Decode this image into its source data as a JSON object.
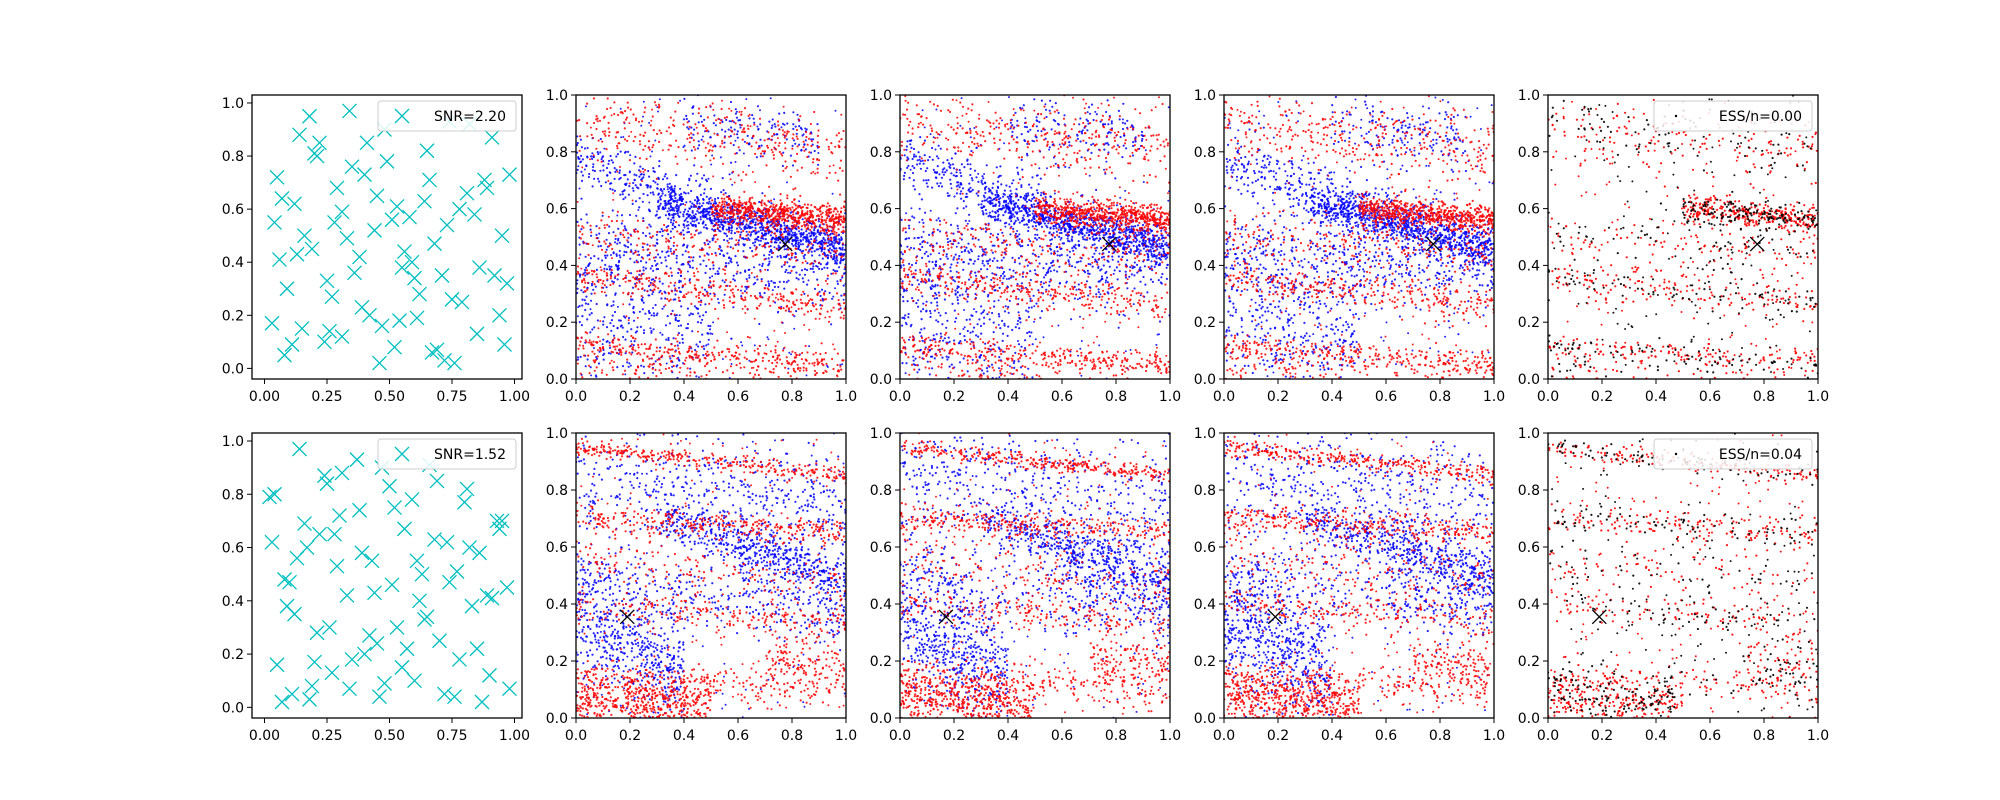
{
  "chart_data": [
    {
      "type": "scatter",
      "panel": "row1-col1",
      "legend": {
        "label": "SNR=2.20",
        "marker": "x",
        "color": "#00bfbf",
        "placement": "top-right"
      },
      "xlim": [
        -0.05,
        1.03
      ],
      "ylim": [
        -0.04,
        1.03
      ],
      "xticks": [
        "0.00",
        "0.25",
        "0.50",
        "0.75",
        "1.00"
      ],
      "yticks": [
        "0.0",
        "0.2",
        "0.4",
        "0.6",
        "0.8",
        "1.0"
      ],
      "points": {
        "x": [
          0.03,
          0.05,
          0.08,
          0.12,
          0.15,
          0.18,
          0.22,
          0.25,
          0.28,
          0.31,
          0.35,
          0.38,
          0.42,
          0.45,
          0.48,
          0.52,
          0.55,
          0.58,
          0.62,
          0.65,
          0.68,
          0.72,
          0.75,
          0.78,
          0.82,
          0.85,
          0.88,
          0.92,
          0.95,
          0.98,
          0.04,
          0.09,
          0.14,
          0.19,
          0.24,
          0.29,
          0.34,
          0.39,
          0.44,
          0.49,
          0.54,
          0.59,
          0.64,
          0.69,
          0.74,
          0.79,
          0.84,
          0.89,
          0.94,
          0.97,
          0.06,
          0.11,
          0.16,
          0.21,
          0.26,
          0.31,
          0.36,
          0.41,
          0.46,
          0.51,
          0.56,
          0.61,
          0.66,
          0.71,
          0.76,
          0.81,
          0.86,
          0.91,
          0.96,
          0.07,
          0.13,
          0.2,
          0.27,
          0.33,
          0.4,
          0.47,
          0.53,
          0.6,
          0.67,
          0.73
        ],
        "y": [
          0.17,
          0.72,
          0.05,
          0.62,
          0.15,
          0.95,
          0.85,
          0.33,
          0.55,
          0.12,
          0.76,
          0.42,
          0.2,
          0.65,
          0.9,
          0.08,
          0.38,
          0.57,
          0.28,
          0.82,
          0.47,
          0.03,
          0.26,
          0.6,
          0.92,
          0.13,
          0.71,
          0.35,
          0.5,
          0.73,
          0.55,
          0.3,
          0.88,
          0.45,
          0.1,
          0.68,
          0.97,
          0.23,
          0.52,
          0.78,
          0.18,
          0.4,
          0.63,
          0.07,
          0.93,
          0.25,
          0.58,
          0.68,
          0.2,
          0.32,
          0.41,
          0.09,
          0.5,
          0.8,
          0.14,
          0.59,
          0.36,
          0.85,
          0.02,
          0.56,
          0.44,
          0.19,
          0.71,
          0.35,
          0.02,
          0.66,
          0.38,
          0.87,
          0.09,
          0.64,
          0.43,
          0.81,
          0.27,
          0.49,
          0.73,
          0.16,
          0.61,
          0.34,
          0.06,
          0.54
        ]
      }
    },
    {
      "type": "scatter",
      "panel": "row1-col2",
      "xlim": [
        0,
        1
      ],
      "ylim": [
        0,
        1
      ],
      "xticks": [
        "0.0",
        "0.2",
        "0.4",
        "0.6",
        "0.8",
        "1.0"
      ],
      "yticks": [
        "0.0",
        "0.2",
        "0.4",
        "0.6",
        "0.8",
        "1.0"
      ],
      "series": [
        {
          "color": "#0000ff"
        },
        {
          "color": "#ff0000"
        }
      ],
      "marker_x": [
        0.775,
        0.475
      ]
    },
    {
      "type": "scatter",
      "panel": "row1-col3",
      "xlim": [
        0,
        1
      ],
      "ylim": [
        0,
        1
      ],
      "xticks": [
        "0.0",
        "0.2",
        "0.4",
        "0.6",
        "0.8",
        "1.0"
      ],
      "yticks": [
        "0.0",
        "0.2",
        "0.4",
        "0.6",
        "0.8",
        "1.0"
      ],
      "series": [
        {
          "color": "#0000ff"
        },
        {
          "color": "#ff0000"
        }
      ],
      "marker_x": [
        0.775,
        0.475
      ]
    },
    {
      "type": "scatter",
      "panel": "row1-col4",
      "xlim": [
        0,
        1
      ],
      "ylim": [
        0,
        1
      ],
      "xticks": [
        "0.0",
        "0.2",
        "0.4",
        "0.6",
        "0.8",
        "1.0"
      ],
      "yticks": [
        "0.0",
        "0.2",
        "0.4",
        "0.6",
        "0.8",
        "1.0"
      ],
      "series": [
        {
          "color": "#0000ff"
        },
        {
          "color": "#ff0000"
        }
      ],
      "marker_x": [
        0.775,
        0.475
      ]
    },
    {
      "type": "scatter",
      "panel": "row1-col5",
      "xlim": [
        0,
        1
      ],
      "ylim": [
        0,
        1
      ],
      "xticks": [
        "0.0",
        "0.2",
        "0.4",
        "0.6",
        "0.8",
        "1.0"
      ],
      "yticks": [
        "0.0",
        "0.2",
        "0.4",
        "0.6",
        "0.8",
        "1.0"
      ],
      "series": [
        {
          "color": "#ff0000"
        },
        {
          "color": "#000000"
        }
      ],
      "marker_x": [
        0.775,
        0.475
      ],
      "legend": {
        "label": "ESS/n=0.00",
        "placement": "top-right"
      }
    },
    {
      "type": "scatter",
      "panel": "row2-col1",
      "legend": {
        "label": "SNR=1.52",
        "marker": "x",
        "color": "#00bfbf",
        "placement": "top-right"
      },
      "xlim": [
        -0.05,
        1.03
      ],
      "ylim": [
        -0.04,
        1.03
      ],
      "xticks": [
        "0.00",
        "0.25",
        "0.50",
        "0.75",
        "1.00"
      ],
      "yticks": [
        "0.0",
        "0.2",
        "0.4",
        "0.6",
        "0.8",
        "1.0"
      ],
      "points": {
        "x": [
          0.02,
          0.05,
          0.08,
          0.11,
          0.14,
          0.17,
          0.21,
          0.24,
          0.27,
          0.3,
          0.33,
          0.37,
          0.4,
          0.43,
          0.46,
          0.5,
          0.53,
          0.56,
          0.6,
          0.63,
          0.66,
          0.7,
          0.73,
          0.76,
          0.8,
          0.83,
          0.86,
          0.9,
          0.93,
          0.97,
          0.03,
          0.07,
          0.12,
          0.16,
          0.2,
          0.25,
          0.29,
          0.34,
          0.38,
          0.42,
          0.47,
          0.51,
          0.55,
          0.59,
          0.64,
          0.68,
          0.72,
          0.77,
          0.81,
          0.85,
          0.89,
          0.94,
          0.98,
          0.04,
          0.09,
          0.13,
          0.18,
          0.22,
          0.26,
          0.31,
          0.35,
          0.39,
          0.44,
          0.48,
          0.52,
          0.57,
          0.61,
          0.65,
          0.69,
          0.74,
          0.78,
          0.82,
          0.87,
          0.91,
          0.95,
          0.1,
          0.19,
          0.28,
          0.45,
          0.62
        ],
        "y": [
          0.79,
          0.16,
          0.48,
          0.05,
          0.97,
          0.6,
          0.28,
          0.87,
          0.13,
          0.72,
          0.42,
          0.93,
          0.2,
          0.55,
          0.04,
          0.83,
          0.3,
          0.67,
          0.1,
          0.5,
          0.91,
          0.25,
          0.62,
          0.04,
          0.77,
          0.38,
          0.58,
          0.12,
          0.7,
          0.45,
          0.62,
          0.02,
          0.35,
          0.69,
          0.17,
          0.84,
          0.53,
          0.07,
          0.74,
          0.27,
          0.9,
          0.46,
          0.15,
          0.78,
          0.33,
          0.63,
          0.05,
          0.51,
          0.82,
          0.22,
          0.42,
          0.67,
          0.07,
          0.8,
          0.38,
          0.56,
          0.03,
          0.65,
          0.3,
          0.88,
          0.18,
          0.58,
          0.43,
          0.09,
          0.75,
          0.22,
          0.55,
          0.34,
          0.85,
          0.47,
          0.18,
          0.6,
          0.02,
          0.41,
          0.7,
          0.47,
          0.08,
          0.65,
          0.24,
          0.4
        ]
      }
    },
    {
      "type": "scatter",
      "panel": "row2-col2",
      "xlim": [
        0,
        1
      ],
      "ylim": [
        0,
        1
      ],
      "xticks": [
        "0.0",
        "0.2",
        "0.4",
        "0.6",
        "0.8",
        "1.0"
      ],
      "yticks": [
        "0.0",
        "0.2",
        "0.4",
        "0.6",
        "0.8",
        "1.0"
      ],
      "series": [
        {
          "color": "#0000ff"
        },
        {
          "color": "#ff0000"
        }
      ],
      "marker_x": [
        0.19,
        0.355
      ]
    },
    {
      "type": "scatter",
      "panel": "row2-col3",
      "xlim": [
        0,
        1
      ],
      "ylim": [
        0,
        1
      ],
      "xticks": [
        "0.0",
        "0.2",
        "0.4",
        "0.6",
        "0.8",
        "1.0"
      ],
      "yticks": [
        "0.0",
        "0.2",
        "0.4",
        "0.6",
        "0.8",
        "1.0"
      ],
      "series": [
        {
          "color": "#0000ff"
        },
        {
          "color": "#ff0000"
        }
      ],
      "marker_x": [
        0.17,
        0.355
      ]
    },
    {
      "type": "scatter",
      "panel": "row2-col4",
      "xlim": [
        0,
        1
      ],
      "ylim": [
        0,
        1
      ],
      "xticks": [
        "0.0",
        "0.2",
        "0.4",
        "0.6",
        "0.8",
        "1.0"
      ],
      "yticks": [
        "0.0",
        "0.2",
        "0.4",
        "0.6",
        "0.8",
        "1.0"
      ],
      "series": [
        {
          "color": "#0000ff"
        },
        {
          "color": "#ff0000"
        }
      ],
      "marker_x": [
        0.19,
        0.355
      ]
    },
    {
      "type": "scatter",
      "panel": "row2-col5",
      "xlim": [
        0,
        1
      ],
      "ylim": [
        0,
        1
      ],
      "xticks": [
        "0.0",
        "0.2",
        "0.4",
        "0.6",
        "0.8",
        "1.0"
      ],
      "yticks": [
        "0.0",
        "0.2",
        "0.4",
        "0.6",
        "0.8",
        "1.0"
      ],
      "series": [
        {
          "color": "#ff0000"
        },
        {
          "color": "#000000"
        }
      ],
      "marker_x": [
        0.19,
        0.355
      ],
      "legend": {
        "label": "ESS/n=0.04",
        "placement": "top-right"
      }
    }
  ]
}
